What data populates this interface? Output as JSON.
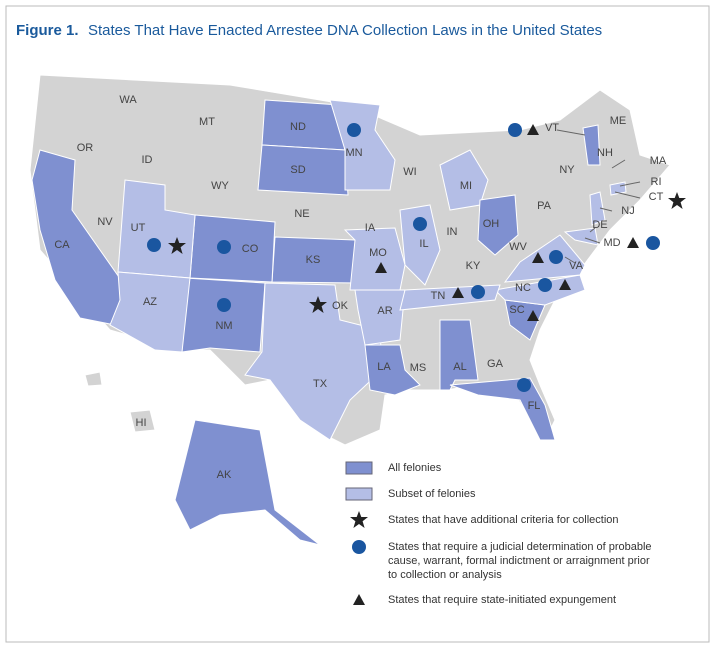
{
  "title": {
    "label": "Figure 1.",
    "text": "States That Have Enacted Arrestee DNA Collection Laws in the United States"
  },
  "states": [
    "WA",
    "OR",
    "ID",
    "MT",
    "WY",
    "NV",
    "CA",
    "UT",
    "CO",
    "AZ",
    "NM",
    "ND",
    "SD",
    "NE",
    "KS",
    "OK",
    "TX",
    "MN",
    "IA",
    "MO",
    "AR",
    "LA",
    "WI",
    "IL",
    "MI",
    "IN",
    "OH",
    "KY",
    "TN",
    "MS",
    "AL",
    "GA",
    "FL",
    "SC",
    "NC",
    "VA",
    "WV",
    "MD",
    "DE",
    "NJ",
    "PA",
    "NY",
    "VT",
    "NH",
    "ME",
    "MA",
    "RI",
    "CT",
    "AK",
    "HI"
  ],
  "legend": [
    {
      "text": "All felonies"
    },
    {
      "text": "Subset of felonies"
    },
    {
      "text": "States that have additional criteria for collection"
    },
    {
      "text": [
        "States that require a judicial determination of probable",
        "cause, warrant, formal indictment or arraignment prior",
        "to collection or analysis"
      ]
    },
    {
      "text": "States that require state-initiated expungement"
    }
  ]
}
